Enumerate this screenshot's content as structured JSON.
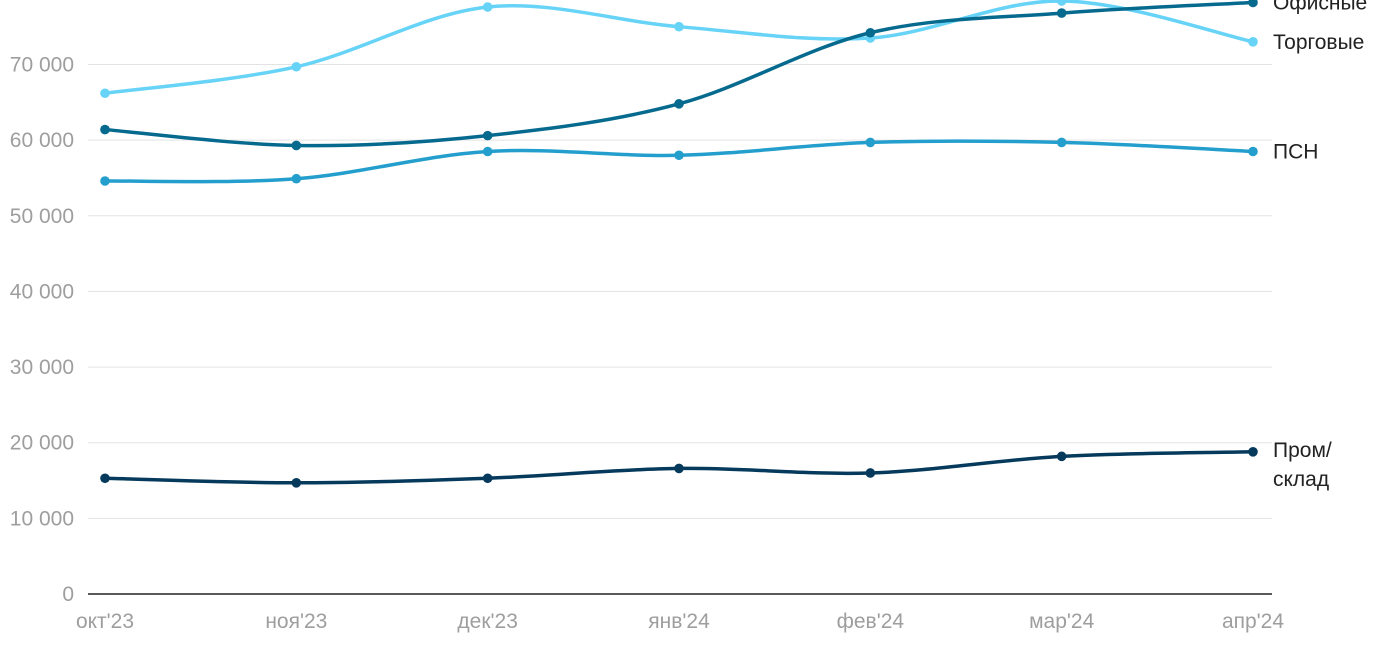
{
  "chart_data": {
    "type": "line",
    "categories": [
      "окт'23",
      "ноя'23",
      "дек'23",
      "янв'24",
      "фев'24",
      "мар'24",
      "апр'24"
    ],
    "y_ticks": [
      0,
      10000,
      20000,
      30000,
      40000,
      50000,
      60000,
      70000
    ],
    "y_tick_labels": [
      "0",
      "10 000",
      "20 000",
      "30 000",
      "40 000",
      "50 000",
      "60 000",
      "70 000"
    ],
    "ylim": [
      0,
      78000
    ],
    "grid": true,
    "legend": "inline-right",
    "series": [
      {
        "name": "Торговые",
        "label_lines": [
          "Торговые"
        ],
        "color": "#66d3f7",
        "values": [
          66200,
          69700,
          77600,
          75000,
          73500,
          78400,
          73000
        ]
      },
      {
        "name": "Офисные",
        "label_lines": [
          "Офисные"
        ],
        "color": "#066a8f",
        "values": [
          61400,
          59300,
          60600,
          64800,
          74200,
          76800,
          78200
        ]
      },
      {
        "name": "ПСН",
        "label_lines": [
          "ПСН"
        ],
        "color": "#249fcd",
        "values": [
          54600,
          54900,
          58500,
          58000,
          59700,
          59700,
          58500
        ]
      },
      {
        "name": "Пром/склад",
        "label_lines": [
          "Пром/",
          "склад"
        ],
        "color": "#063a5c",
        "values": [
          15300,
          14700,
          15300,
          16600,
          16000,
          18200,
          18800
        ]
      }
    ]
  }
}
